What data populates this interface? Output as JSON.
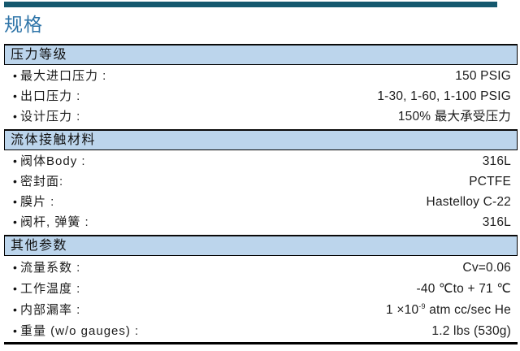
{
  "page": {
    "title": "规格",
    "accent_color": "#2E74A8",
    "topbar_color": "#15586E",
    "section_band_color": "#BCD5EC",
    "bullet": "•"
  },
  "sections": [
    {
      "name": "pressure-rating",
      "heading": "压力等级",
      "rows": [
        {
          "label": "最大进口压力 :",
          "value": "150 PSIG"
        },
        {
          "label": "出口压力 :",
          "value": "1-30, 1-60, 1-100 PSIG"
        },
        {
          "label": "设计压力 :",
          "value": "150% 最大承受压力"
        }
      ]
    },
    {
      "name": "wetted-materials",
      "heading": "流体接触材料",
      "rows": [
        {
          "label": "阀体Body :",
          "value": "316L"
        },
        {
          "label": "密封面:",
          "value": "PCTFE"
        },
        {
          "label": "膜片 :",
          "value": "Hastelloy C-22"
        },
        {
          "label": "阀杆, 弹簧 :",
          "value": "316L"
        }
      ]
    },
    {
      "name": "other-parameters",
      "heading": "其他参数",
      "rows": [
        {
          "label": "流量系数 :",
          "value": "Cv=0.06"
        },
        {
          "label": "工作温度 :",
          "value": "-40 ℃to + 71 ℃"
        },
        {
          "label": "内部漏率 :",
          "value_pre": "1 ×10",
          "value_sup": "-9",
          "value_post": " atm cc/sec He"
        },
        {
          "label": "重量 (w/o gauges) :",
          "value": "1.2 lbs (530g)"
        }
      ]
    }
  ]
}
